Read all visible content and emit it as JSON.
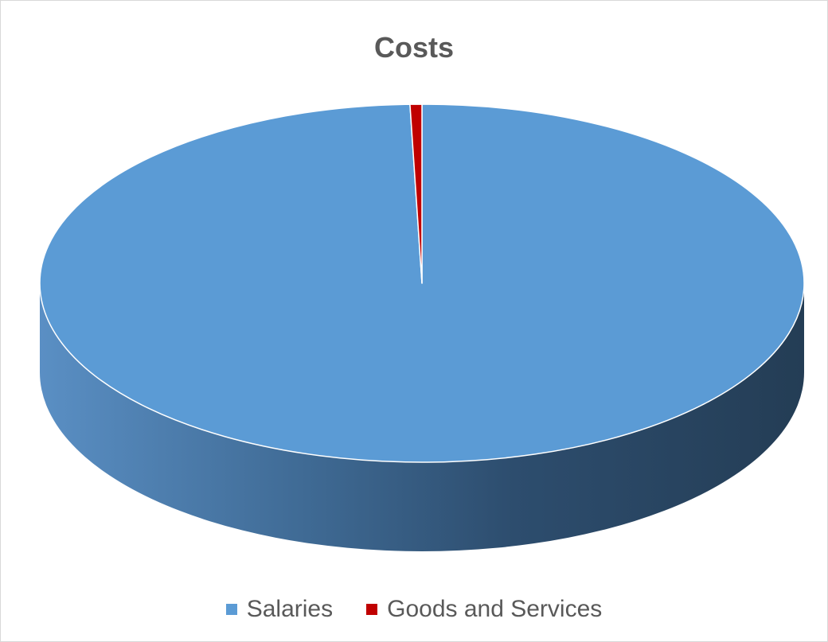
{
  "chart_data": {
    "type": "pie",
    "style": "3d",
    "title": "Costs",
    "legend_position": "bottom",
    "series": [
      {
        "name": "Salaries",
        "value": 99.5,
        "color": "#5b9bd5"
      },
      {
        "name": "Goods and Services",
        "value": 0.5,
        "color": "#c00000"
      }
    ]
  }
}
